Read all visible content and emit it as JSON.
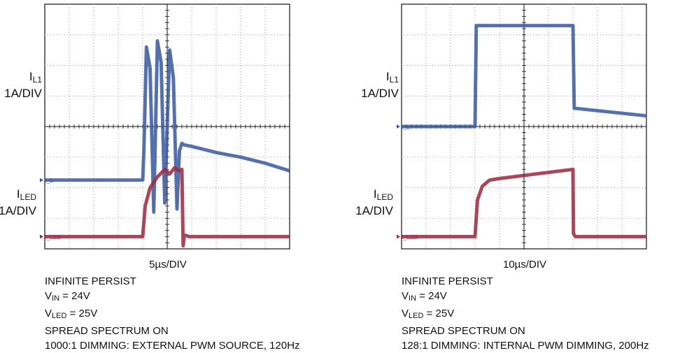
{
  "panels": [
    {
      "ylabel_top_main": "I",
      "ylabel_top_sub": "L1",
      "ylabel_top_scale": "1A/DIV",
      "ylabel_bot_main": "I",
      "ylabel_bot_sub": "LED",
      "ylabel_bot_scale": "1A/DIV",
      "marker_top": "I_L",
      "marker_bot": "I_LED",
      "timescale": "5µs/DIV",
      "note_persist": "INFINITE PERSIST",
      "note_vin_main": "V",
      "note_vin_sub": "IN",
      "note_vin_value": " = 24V",
      "note_vled_main": "V",
      "note_vled_sub": "LED",
      "note_vled_value": " = 25V",
      "note_spread": "SPREAD SPECTRUM ON",
      "note_dimming": "1000:1 DIMMING: EXTERNAL PWM SOURCE, 120Hz"
    },
    {
      "ylabel_top_main": "I",
      "ylabel_top_sub": "L1",
      "ylabel_top_scale": "1A/DIV",
      "ylabel_bot_main": "I",
      "ylabel_bot_sub": "LED",
      "ylabel_bot_scale": "1A/DIV",
      "marker_top": "I_L",
      "marker_bot": "I_LED",
      "timescale": "10µs/DIV",
      "note_persist": "INFINITE PERSIST",
      "note_vin_main": "V",
      "note_vin_sub": "IN",
      "note_vin_value": " = 24V",
      "note_vled_main": "V",
      "note_vled_sub": "LED",
      "note_vled_value": " = 25V",
      "note_spread": "SPREAD SPECTRUM ON",
      "note_dimming": "128:1 DIMMING: INTERNAL PWM DIMMING, 200Hz"
    }
  ],
  "colors": {
    "inductor_trace": "#3a5ca8",
    "led_trace": "#a3273e",
    "grid": "#9a9a9a",
    "frame": "#111111"
  },
  "chart_data": [
    {
      "type": "line",
      "x_unit_divisions": 10,
      "y_unit_divisions": 8,
      "series": [
        {
          "name": "I_L",
          "x": [
            0,
            4.0,
            4.05,
            4.15,
            4.3,
            4.45,
            4.6,
            4.75,
            4.9,
            5.1,
            5.25,
            5.4,
            5.5,
            5.6,
            5.7,
            6.0,
            7.0,
            8.0,
            9.0,
            10.0
          ],
          "y": [
            2.25,
            2.25,
            3.3,
            6.6,
            5.9,
            1.2,
            6.8,
            6.1,
            1.5,
            6.5,
            5.6,
            1.3,
            3.2,
            3.45,
            3.4,
            3.35,
            3.15,
            3.0,
            2.8,
            2.55
          ]
        },
        {
          "name": "I_LED",
          "x": [
            0,
            4.0,
            4.1,
            4.3,
            4.6,
            4.9,
            5.1,
            5.3,
            5.5,
            5.6,
            5.65,
            5.7,
            5.9,
            10.0
          ],
          "y": [
            0.4,
            0.4,
            1.4,
            2.0,
            2.35,
            2.6,
            2.45,
            2.65,
            2.55,
            2.6,
            0.1,
            0.45,
            0.4,
            0.4
          ]
        }
      ]
    },
    {
      "type": "line",
      "x_unit_divisions": 10,
      "y_unit_divisions": 8,
      "series": [
        {
          "name": "I_L",
          "x": [
            0,
            3.0,
            3.05,
            7.0,
            7.05,
            10.0
          ],
          "y": [
            4.0,
            4.0,
            7.3,
            7.3,
            4.6,
            4.35
          ]
        },
        {
          "name": "I_LED",
          "x": [
            0,
            3.0,
            3.1,
            3.3,
            3.6,
            4.0,
            5.0,
            6.0,
            7.0,
            7.02,
            7.1,
            10.0
          ],
          "y": [
            0.4,
            0.4,
            1.6,
            2.05,
            2.25,
            2.3,
            2.4,
            2.5,
            2.6,
            0.5,
            0.4,
            0.4
          ]
        }
      ]
    }
  ]
}
